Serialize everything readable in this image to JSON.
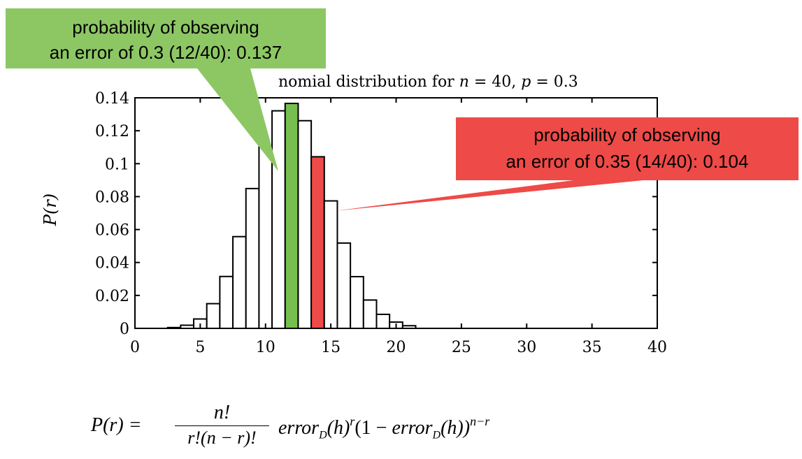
{
  "chart_data": {
    "type": "bar",
    "title": "Binomial distribution for n = 40, p = 0.3",
    "title_visible_part": "nomial distribution for ",
    "title_vars": {
      "n": "n",
      "n_val": " = 40, ",
      "p": "p",
      "p_val": " = 0.3"
    },
    "ylabel": "P(r)",
    "xlabel": "",
    "xlim": [
      0,
      40
    ],
    "ylim": [
      0,
      0.14
    ],
    "x_ticks": [
      "0",
      "5",
      "10",
      "15",
      "20",
      "25",
      "30",
      "35",
      "40"
    ],
    "y_ticks": [
      "0",
      "0.02",
      "0.04",
      "0.06",
      "0.08",
      "0.1",
      "0.12",
      "0.14"
    ],
    "x": [
      3,
      4,
      5,
      6,
      7,
      8,
      9,
      10,
      11,
      12,
      13,
      14,
      15,
      16,
      17,
      18,
      19,
      20,
      21
    ],
    "values": [
      0.0005,
      0.0019,
      0.0057,
      0.015,
      0.0315,
      0.0557,
      0.0849,
      0.1101,
      0.1321,
      0.1366,
      0.1261,
      0.1042,
      0.0774,
      0.0518,
      0.0314,
      0.0172,
      0.0085,
      0.0038,
      0.0016
    ],
    "highlighted": [
      {
        "x": 12,
        "color": "#76bf4f"
      },
      {
        "x": 14,
        "color": "#ee4a47"
      }
    ],
    "grid": false
  },
  "callouts": {
    "green": {
      "line1": "probability of observing",
      "line2": "an error of 0.3 (12/40): 0.137",
      "color": "#8dc764"
    },
    "red": {
      "line1": "probability of observing",
      "line2": "an error of 0.35 (14/40): 0.104",
      "color": "#ee4a47"
    }
  },
  "formula": {
    "lhs": "P(r) =",
    "numerator": "n!",
    "denominator": "r!(n − r)!",
    "rhs_a": "error",
    "sub": "D",
    "rhs_b": "(h)",
    "sup_r": "r",
    "rhs_c": "(1 − ",
    "rhs_d": "error",
    "rhs_e": "(h))",
    "sup_nr": "n−r"
  }
}
